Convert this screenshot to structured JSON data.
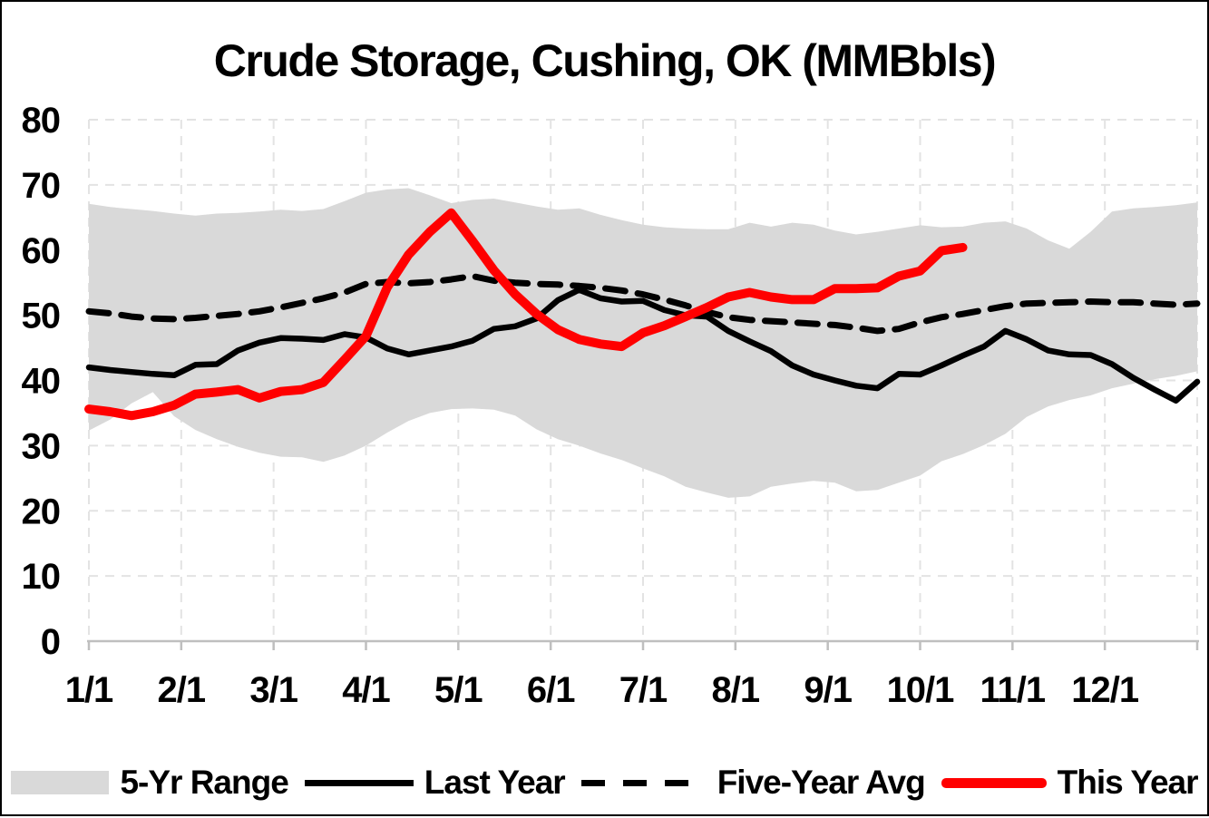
{
  "title": "Crude Storage, Cushing, OK (MMBbls)",
  "colors": {
    "background": "#FFFFFF",
    "band": "#D9D9D9",
    "grid": "#E3E3E3",
    "axis": "#BFBFBF",
    "text": "#000000",
    "black_line": "#000000",
    "red_line": "#FF0000"
  },
  "legend": {
    "items": [
      {
        "label": "5-Yr Range",
        "swatch": "band"
      },
      {
        "label": "Last Year",
        "swatch": "solid-line"
      },
      {
        "label": "Five-Year Avg",
        "swatch": "dashed-line"
      },
      {
        "label": "This Year",
        "swatch": "thick-red-line"
      }
    ]
  },
  "chart_data": {
    "type": "line",
    "title": "Crude Storage, Cushing, OK (MMBbls)",
    "x_unit": "weeks (Jan 1 = index 0, weekly points)",
    "x_tick_labels": [
      "1/1",
      "2/1",
      "3/1",
      "4/1",
      "5/1",
      "6/1",
      "7/1",
      "8/1",
      "9/1",
      "10/1",
      "11/1",
      "12/1"
    ],
    "y_ticks": [
      0,
      10,
      20,
      30,
      40,
      50,
      60,
      70,
      80
    ],
    "ylim": [
      0,
      80
    ],
    "grid": true,
    "legend_position": "bottom",
    "series": [
      {
        "name": "5-Yr Range",
        "type": "band",
        "color": "#D9D9D9",
        "upper": [
          67.1,
          66.6,
          66.3,
          66.0,
          65.6,
          65.3,
          65.6,
          65.7,
          65.9,
          66.2,
          66.0,
          66.3,
          67.5,
          68.8,
          69.3,
          69.5,
          68.4,
          67.2,
          67.7,
          67.9,
          67.3,
          66.7,
          66.2,
          66.4,
          65.4,
          64.6,
          63.9,
          63.5,
          63.3,
          63.2,
          63.2,
          64.2,
          63.6,
          64.2,
          63.9,
          63.0,
          62.4,
          62.8,
          63.3,
          63.8,
          63.5,
          63.6,
          64.2,
          64.4,
          63.3,
          61.5,
          60.2,
          62.8,
          65.9,
          66.4,
          66.6,
          66.9,
          67.3
        ],
        "lower": [
          32.3,
          34.0,
          36.5,
          38.2,
          34.5,
          32.4,
          31.0,
          29.8,
          28.9,
          28.3,
          28.2,
          27.5,
          28.5,
          30.0,
          32.0,
          33.8,
          35.0,
          35.6,
          35.7,
          35.5,
          34.6,
          32.5,
          31.0,
          30.0,
          28.8,
          27.8,
          26.5,
          25.3,
          23.7,
          22.8,
          22.0,
          22.2,
          23.7,
          24.2,
          24.6,
          24.3,
          23.0,
          23.2,
          24.3,
          25.4,
          27.6,
          28.7,
          30.1,
          31.8,
          34.4,
          36.0,
          37.0,
          37.7,
          38.8,
          39.5,
          40.2,
          40.7,
          41.4
        ]
      },
      {
        "name": "Last Year",
        "type": "line",
        "style": "solid",
        "color": "#000000",
        "width": 6.5,
        "values": [
          42.0,
          41.6,
          41.3,
          41.0,
          40.8,
          42.4,
          42.5,
          44.6,
          45.8,
          46.5,
          46.4,
          46.2,
          47.1,
          46.6,
          44.9,
          44.0,
          44.6,
          45.2,
          46.1,
          47.9,
          48.3,
          49.5,
          52.3,
          53.9,
          52.6,
          52.1,
          52.2,
          50.8,
          50.0,
          49.8,
          47.6,
          46.0,
          44.5,
          42.3,
          40.9,
          40.0,
          39.2,
          38.8,
          41.0,
          40.9,
          42.3,
          43.8,
          45.2,
          47.6,
          46.3,
          44.6,
          44.0,
          43.9,
          42.5,
          40.4,
          38.6,
          36.9,
          39.8
        ]
      },
      {
        "name": "Five-Year Avg",
        "type": "line",
        "style": "dashed",
        "color": "#000000",
        "width": 7,
        "values": [
          50.6,
          50.3,
          49.8,
          49.5,
          49.4,
          49.6,
          49.9,
          50.2,
          50.6,
          51.2,
          51.9,
          52.6,
          53.5,
          54.8,
          55.1,
          54.9,
          55.1,
          55.5,
          56.0,
          55.3,
          55.0,
          54.8,
          54.7,
          54.5,
          54.2,
          53.8,
          53.2,
          52.4,
          51.5,
          50.5,
          49.7,
          49.3,
          49.1,
          48.9,
          48.7,
          48.5,
          48.1,
          47.6,
          47.9,
          48.9,
          49.7,
          50.2,
          50.8,
          51.4,
          51.8,
          51.9,
          52.0,
          52.1,
          52.0,
          52.0,
          51.8,
          51.6,
          51.8
        ]
      },
      {
        "name": "This Year",
        "type": "line",
        "style": "solid",
        "color": "#FF0000",
        "width": 10,
        "values": [
          35.6,
          35.2,
          34.6,
          35.2,
          36.2,
          37.9,
          38.2,
          38.6,
          37.3,
          38.3,
          38.6,
          39.7,
          43.2,
          46.8,
          54.3,
          59.3,
          62.8,
          65.7,
          61.4,
          56.9,
          53.2,
          50.2,
          47.8,
          46.3,
          45.6,
          45.2,
          47.3,
          48.4,
          49.8,
          51.2,
          52.8,
          53.5,
          52.8,
          52.4,
          52.4,
          54.1,
          54.1,
          54.2,
          56.0,
          56.8,
          59.9,
          60.4
        ]
      }
    ]
  }
}
